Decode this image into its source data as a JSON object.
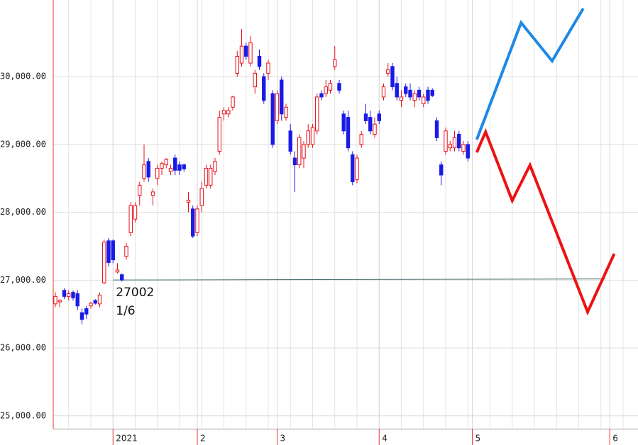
{
  "chart_data": {
    "type": "candlestick",
    "categories": [
      null,
      null,
      null,
      null,
      null,
      null,
      null,
      null,
      null,
      null,
      null,
      null,
      null,
      "2021",
      null,
      null,
      null,
      null,
      null,
      null,
      null,
      null,
      null,
      null,
      null,
      null,
      null,
      null,
      null,
      null,
      null,
      null,
      "2",
      null,
      null,
      null,
      null,
      null,
      null,
      null,
      null,
      null,
      null,
      null,
      null,
      null,
      null,
      null,
      null,
      null,
      "3",
      null,
      null,
      null,
      null,
      null,
      null,
      null,
      null,
      null,
      null,
      null,
      null,
      null,
      null,
      null,
      null,
      null,
      null,
      null,
      null,
      null,
      null,
      "4",
      null,
      null,
      null,
      null,
      null,
      null,
      null,
      null,
      null,
      null,
      null,
      null,
      null,
      null,
      null,
      null,
      null,
      null,
      null,
      null,
      "5",
      null,
      null,
      null,
      null,
      null,
      null,
      null,
      null,
      null,
      null,
      null,
      null,
      null,
      null,
      null,
      null,
      null,
      null,
      null,
      null,
      null,
      null,
      null,
      null,
      null,
      null,
      null,
      null,
      null,
      null,
      "6",
      null,
      null,
      null,
      null,
      null
    ],
    "ohlc": [
      [
        26650,
        26820,
        26600,
        26760
      ],
      [
        26680,
        26720,
        26600,
        26700
      ],
      [
        26850,
        26880,
        26720,
        26760
      ],
      [
        26760,
        26850,
        26700,
        26800
      ],
      [
        26820,
        26850,
        26700,
        26740
      ],
      [
        26800,
        26850,
        26560,
        26620
      ],
      [
        26520,
        26580,
        26350,
        26420
      ],
      [
        26580,
        26620,
        26430,
        26500
      ],
      [
        26620,
        26680,
        26580,
        26660
      ],
      [
        26700,
        26720,
        26640,
        26660
      ],
      [
        26650,
        26820,
        26600,
        26780
      ],
      [
        26960,
        27600,
        26940,
        27560
      ],
      [
        27580,
        27620,
        27200,
        27260
      ],
      [
        27580,
        27600,
        27250,
        27300
      ],
      [
        27120,
        27250,
        27100,
        27150
      ],
      [
        27080,
        27100,
        26980,
        27002
      ],
      [
        27350,
        27550,
        27300,
        27500
      ],
      [
        27700,
        28150,
        27650,
        28100
      ],
      [
        27900,
        28150,
        27850,
        28100
      ],
      [
        28250,
        28450,
        28100,
        28400
      ],
      [
        28500,
        29000,
        28450,
        28700
      ],
      [
        28750,
        28800,
        28450,
        28520
      ],
      [
        28250,
        28350,
        28100,
        28300
      ],
      [
        28500,
        28700,
        28400,
        28650
      ],
      [
        28650,
        28750,
        28550,
        28720
      ],
      [
        28700,
        28800,
        28650,
        28780
      ],
      [
        28600,
        28700,
        28550,
        28650
      ],
      [
        28800,
        28850,
        28550,
        28620
      ],
      [
        28700,
        28750,
        28550,
        28620
      ],
      [
        28700,
        28720,
        28600,
        28640
      ],
      [
        28150,
        28300,
        28000,
        28180
      ],
      [
        28050,
        28100,
        27620,
        27650
      ],
      [
        27700,
        28100,
        27650,
        28050
      ],
      [
        28100,
        28450,
        28000,
        28350
      ],
      [
        28400,
        28700,
        28350,
        28650
      ],
      [
        28400,
        28700,
        28350,
        28650
      ],
      [
        28600,
        28800,
        28550,
        28750
      ],
      [
        28900,
        29500,
        28850,
        29400
      ],
      [
        29450,
        29550,
        29350,
        29500
      ],
      [
        29450,
        29550,
        29400,
        29500
      ],
      [
        29550,
        29720,
        29500,
        29700
      ],
      [
        30050,
        30380,
        30000,
        30300
      ],
      [
        30200,
        30700,
        30150,
        30450
      ],
      [
        30450,
        30500,
        30250,
        30300
      ],
      [
        30200,
        30600,
        30150,
        30500
      ],
      [
        29850,
        30100,
        29750,
        30050
      ],
      [
        30300,
        30400,
        30100,
        30150
      ],
      [
        30000,
        30050,
        29600,
        29650
      ],
      [
        30050,
        30250,
        29950,
        30200
      ],
      [
        29750,
        29800,
        28950,
        29000
      ],
      [
        29350,
        29800,
        29300,
        29750
      ],
      [
        29950,
        30000,
        29350,
        29450
      ],
      [
        29400,
        29600,
        29350,
        29550
      ],
      [
        29200,
        29300,
        28850,
        28900
      ],
      [
        28800,
        28900,
        28300,
        28700
      ],
      [
        28700,
        29150,
        28650,
        29100
      ],
      [
        28800,
        29050,
        28650,
        29000
      ],
      [
        29000,
        29300,
        28950,
        29200
      ],
      [
        29000,
        29300,
        28950,
        29250
      ],
      [
        29200,
        29750,
        29150,
        29700
      ],
      [
        29750,
        29800,
        29650,
        29700
      ],
      [
        29750,
        29950,
        29700,
        29850
      ],
      [
        29800,
        29950,
        29750,
        29900
      ],
      [
        30150,
        30450,
        30100,
        30250
      ],
      [
        29900,
        29950,
        29750,
        29800
      ],
      [
        29450,
        29500,
        29150,
        29200
      ],
      [
        29400,
        29500,
        28900,
        28950
      ],
      [
        28850,
        28900,
        28400,
        28450
      ],
      [
        28480,
        28850,
        28430,
        28800
      ],
      [
        29000,
        29200,
        28950,
        29150
      ],
      [
        29450,
        29600,
        29300,
        29350
      ],
      [
        29400,
        29500,
        29150,
        29200
      ],
      [
        29150,
        29400,
        29100,
        29300
      ],
      [
        29450,
        29500,
        29300,
        29350
      ],
      [
        29700,
        29900,
        29650,
        29850
      ],
      [
        30050,
        30200,
        30000,
        30100
      ],
      [
        30150,
        30200,
        29800,
        29850
      ],
      [
        29900,
        30000,
        29650,
        29700
      ],
      [
        29650,
        29800,
        29550,
        29700
      ],
      [
        29850,
        29900,
        29700,
        29750
      ],
      [
        29800,
        29900,
        29650,
        29700
      ],
      [
        29650,
        29800,
        29550,
        29750
      ],
      [
        29800,
        29850,
        29650,
        29700
      ],
      [
        29600,
        29750,
        29550,
        29700
      ],
      [
        29800,
        29850,
        29600,
        29650
      ],
      [
        29800,
        29830,
        29700,
        29720
      ],
      [
        29350,
        29400,
        29050,
        29100
      ],
      [
        28700,
        28750,
        28400,
        28550
      ],
      [
        28900,
        29250,
        28850,
        29200
      ],
      [
        28950,
        29050,
        28900,
        29000
      ],
      [
        28950,
        29200,
        28900,
        29100
      ],
      [
        29150,
        29200,
        28900,
        28950
      ],
      [
        28900,
        29050,
        28850,
        29000
      ],
      [
        29000,
        29050,
        28750,
        28800
      ],
      null,
      null,
      null,
      null,
      null,
      null,
      null,
      null,
      null,
      null,
      null,
      null,
      null,
      null,
      null,
      null,
      null,
      null,
      null,
      null,
      null,
      null,
      null,
      null,
      null,
      null,
      null,
      null,
      null,
      null,
      null,
      null,
      null,
      null,
      null,
      null,
      null
    ],
    "up_color": "#e8101a",
    "down_color": "#1a1ae6",
    "series": [
      {
        "color": "#1e88e5",
        "values": [
          null,
          null,
          null,
          null,
          null,
          null,
          null,
          null,
          null,
          null,
          null,
          null,
          null,
          null,
          null,
          null,
          null,
          null,
          null,
          null,
          null,
          null,
          null,
          null,
          null,
          null,
          null,
          null,
          null,
          null,
          null,
          null,
          null,
          null,
          null,
          null,
          null,
          null,
          null,
          null,
          null,
          null,
          null,
          null,
          null,
          null,
          null,
          null,
          null,
          null,
          null,
          null,
          null,
          null,
          null,
          null,
          null,
          null,
          null,
          null,
          null,
          null,
          null,
          null,
          null,
          null,
          null,
          null,
          null,
          null,
          null,
          null,
          null,
          null,
          null,
          null,
          null,
          null,
          null,
          null,
          null,
          null,
          null,
          null,
          null,
          null,
          null,
          null,
          null,
          null,
          null,
          null,
          null,
          null,
          null,
          29071,
          29244,
          29416,
          29589,
          29761,
          29934,
          30106,
          30278,
          30451,
          30623,
          30796,
          30715,
          30634,
          30554,
          30473,
          30392,
          30312,
          30231,
          30342,
          30452,
          30563,
          30673,
          30784,
          30894,
          31005,
          null,
          null,
          null,
          null,
          null,
          null,
          null,
          null,
          null,
          null,
          null
        ]
      },
      {
        "color": "#ee1111",
        "values": [
          null,
          null,
          null,
          null,
          null,
          null,
          null,
          null,
          null,
          null,
          null,
          null,
          null,
          null,
          null,
          null,
          null,
          null,
          null,
          null,
          null,
          null,
          null,
          null,
          null,
          null,
          null,
          null,
          null,
          null,
          null,
          null,
          null,
          null,
          null,
          null,
          null,
          null,
          null,
          null,
          null,
          null,
          null,
          null,
          null,
          null,
          null,
          null,
          null,
          null,
          null,
          null,
          null,
          null,
          null,
          null,
          null,
          null,
          null,
          null,
          null,
          null,
          null,
          null,
          null,
          null,
          null,
          null,
          null,
          null,
          null,
          null,
          null,
          null,
          null,
          null,
          null,
          null,
          null,
          null,
          null,
          null,
          null,
          null,
          null,
          null,
          null,
          null,
          null,
          null,
          null,
          null,
          null,
          null,
          null,
          28883,
          29035,
          29186,
          29017,
          28848,
          28680,
          28511,
          28342,
          28173,
          28304,
          28434,
          28565,
          28695,
          28529,
          28362,
          28196,
          28029,
          27863,
          27697,
          27530,
          27364,
          27197,
          27031,
          26865,
          26698,
          26532,
          26675,
          26818,
          26961,
          27104,
          27246,
          27389,
          null,
          null,
          null,
          null
        ]
      }
    ],
    "annotation": {
      "value": 27002,
      "text": "1/6",
      "color": "#4a6e6e"
    },
    "ylim": [
      24810,
      31130
    ],
    "yticks": [
      {
        "value": 25000,
        "label": "25,000.00"
      },
      {
        "value": 26000,
        "label": "26,000.00"
      },
      {
        "value": 27000,
        "label": "27,000.00"
      },
      {
        "value": 28000,
        "label": "28,000.00"
      },
      {
        "value": 29000,
        "label": "29,000.00"
      },
      {
        "value": 30000,
        "label": "30,000.00"
      }
    ],
    "grid": true
  }
}
